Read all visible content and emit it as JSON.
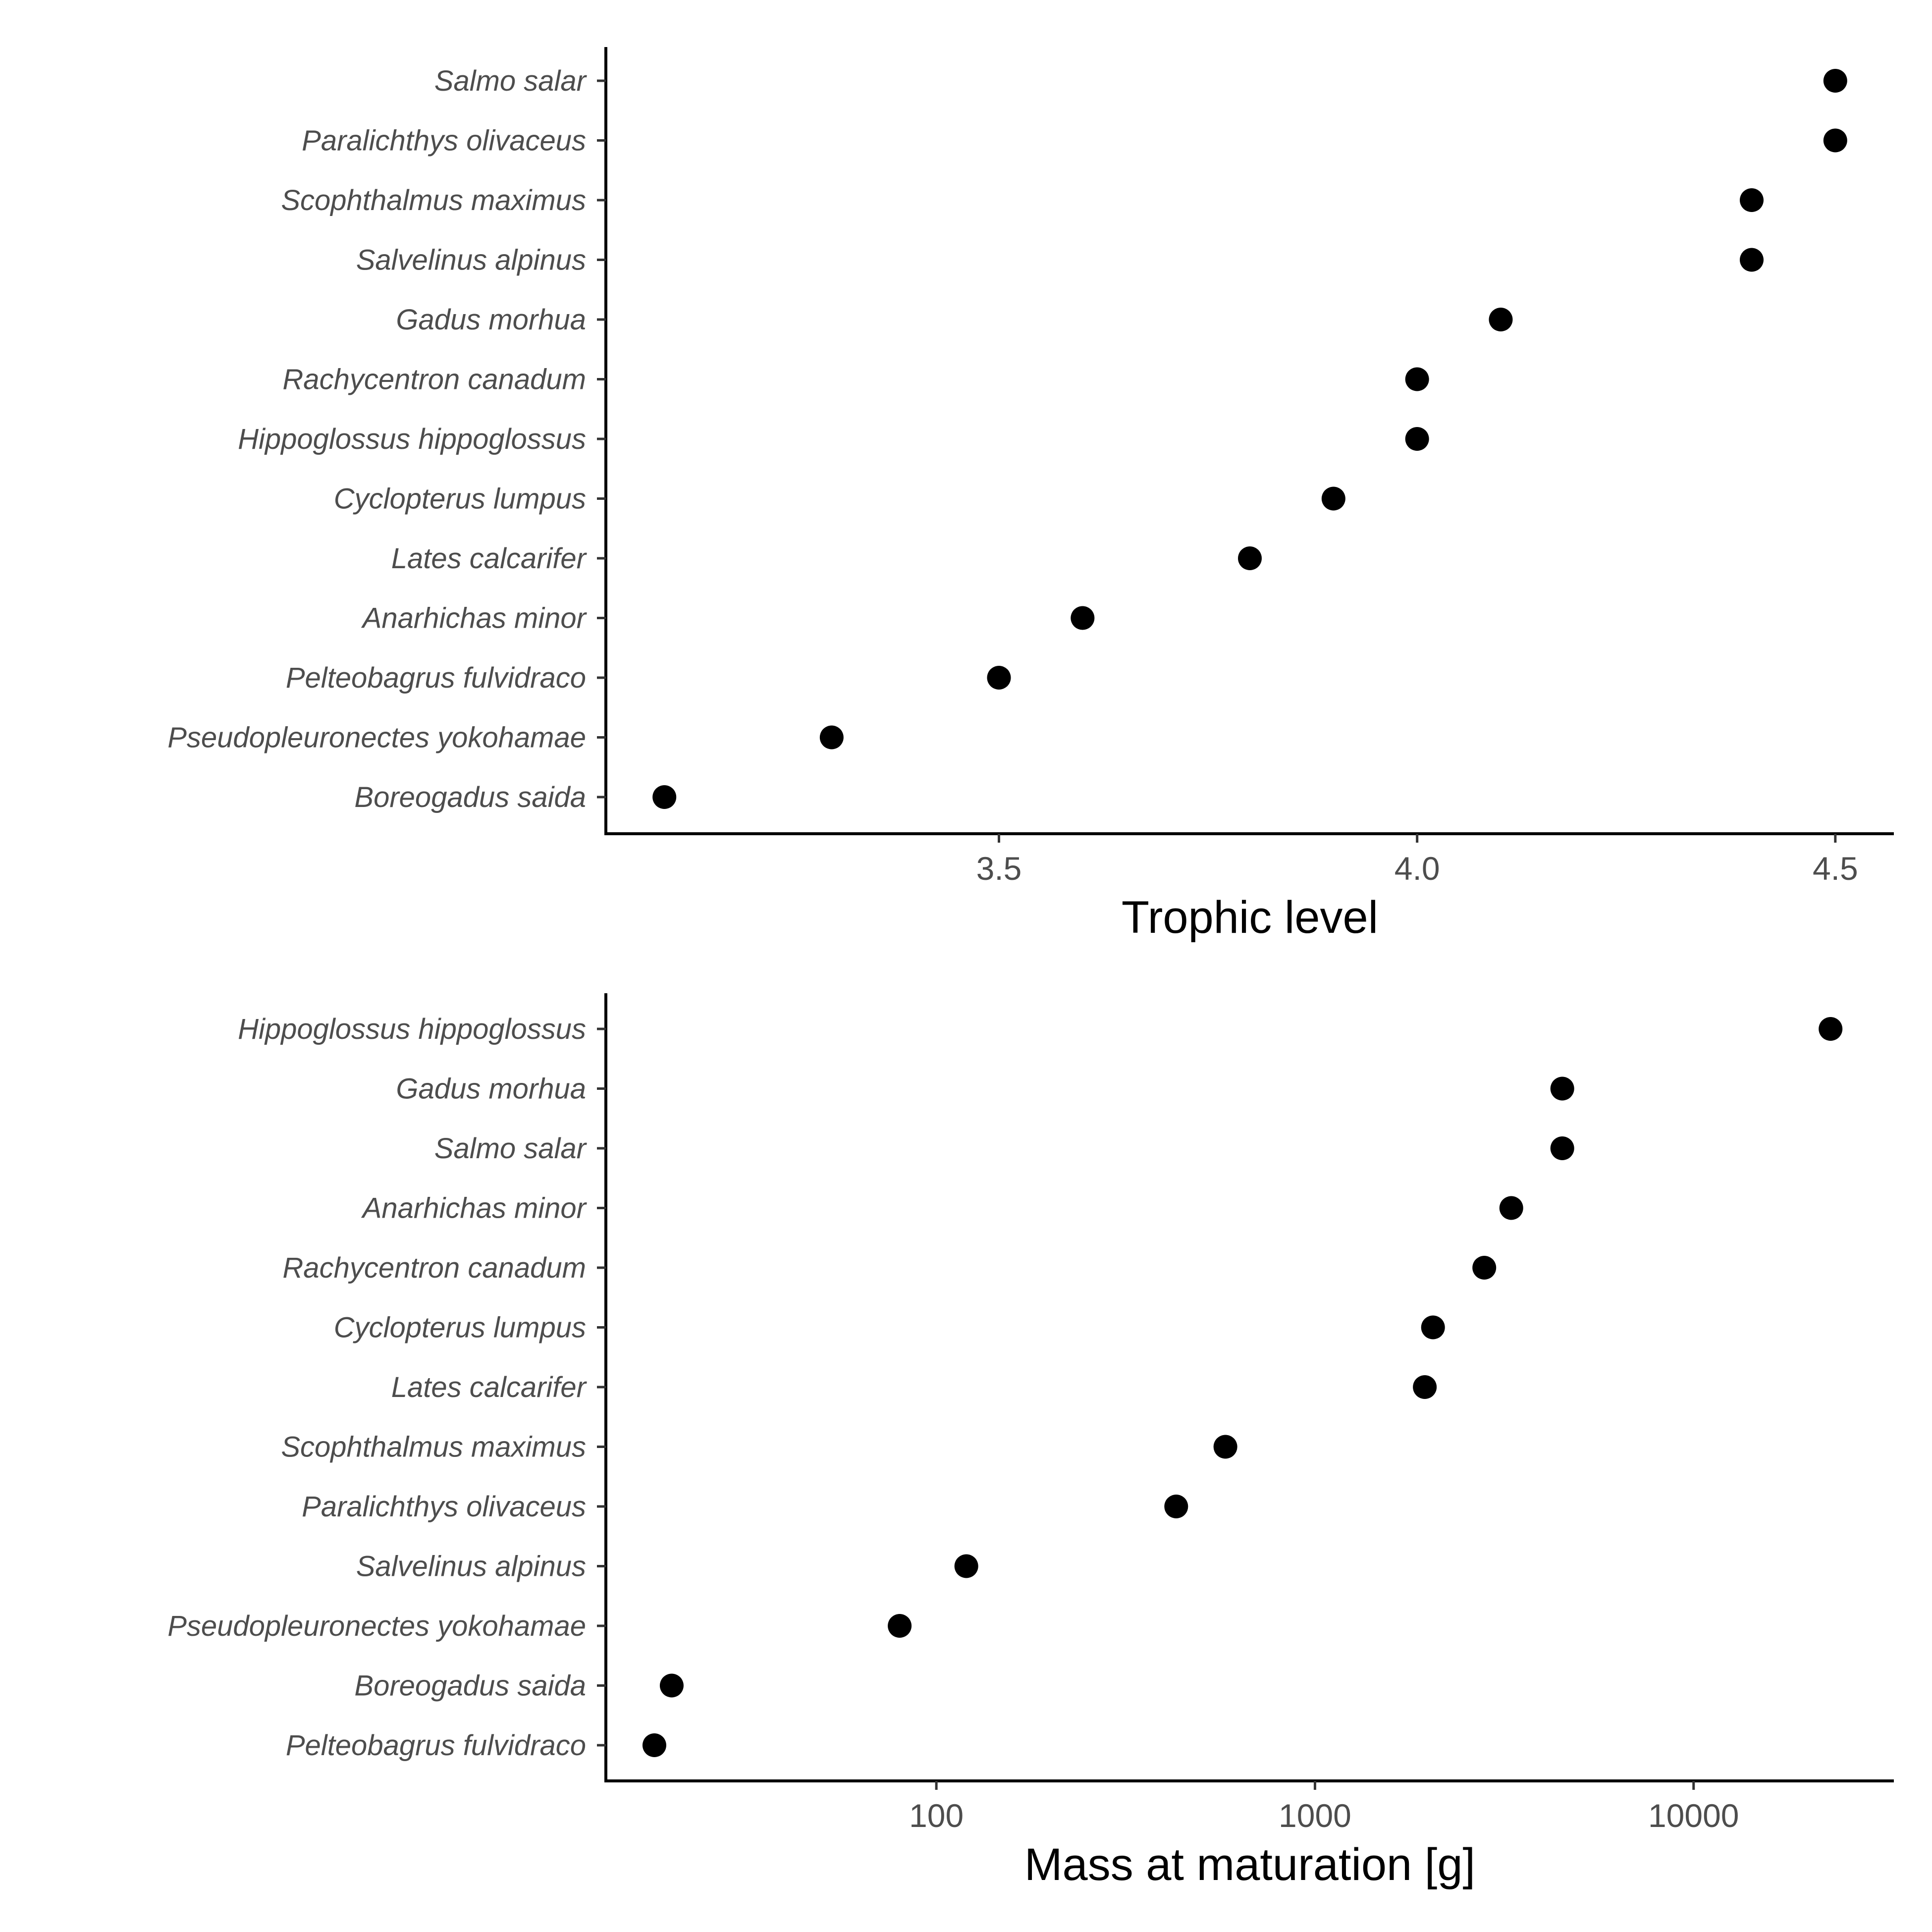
{
  "chart_data": [
    {
      "type": "scatter",
      "xlabel": "Trophic level",
      "x_scale": "linear",
      "xlim": [
        3.03,
        4.57
      ],
      "x_ticks": [
        3.5,
        4.0,
        4.5
      ],
      "x_tick_labels": [
        "3.5",
        "4.0",
        "4.5"
      ],
      "grid": false,
      "categories": [
        "Salmo salar",
        "Paralichthys olivaceus",
        "Scophthalmus maximus",
        "Salvelinus alpinus",
        "Gadus morhua",
        "Rachycentron canadum",
        "Hippoglossus hippoglossus",
        "Cyclopterus lumpus",
        "Lates calcarifer",
        "Anarhichas minor",
        "Pelteobagrus fulvidraco",
        "Pseudopleuronectes yokohamae",
        "Boreogadus saida"
      ],
      "values": [
        4.5,
        4.5,
        4.4,
        4.4,
        4.1,
        4.0,
        4.0,
        3.9,
        3.8,
        3.6,
        3.5,
        3.3,
        3.1
      ]
    },
    {
      "type": "scatter",
      "xlabel": "Mass at maturation [g]",
      "x_scale": "log",
      "xlim": [
        13.4,
        33800
      ],
      "x_ticks": [
        100,
        1000,
        10000
      ],
      "x_tick_labels": [
        "100",
        "1000",
        "10000"
      ],
      "grid": false,
      "categories": [
        "Hippoglossus hippoglossus",
        "Gadus morhua",
        "Salmo salar",
        "Anarhichas minor",
        "Rachycentron canadum",
        "Cyclopterus lumpus",
        "Lates calcarifer",
        "Scophthalmus maximus",
        "Paralichthys olivaceus",
        "Salvelinus alpinus",
        "Pseudopleuronectes yokohamae",
        "Boreogadus saida",
        "Pelteobagrus fulvidraco"
      ],
      "values": [
        23000,
        4500,
        4500,
        3300,
        2800,
        2050,
        1950,
        580,
        430,
        120,
        80,
        20,
        18
      ]
    }
  ]
}
